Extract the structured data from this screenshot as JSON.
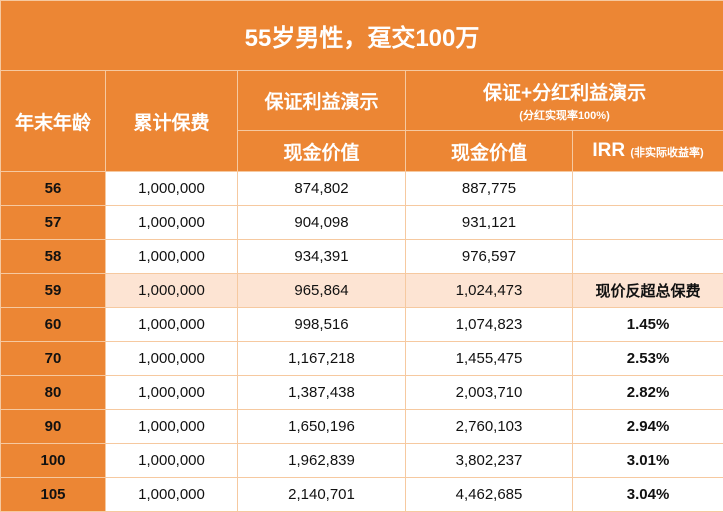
{
  "title": "55岁男性，趸交100万",
  "headers": {
    "age": "年末年龄",
    "premium": "累计保费",
    "guaranteed": "保证利益演示",
    "dividend": "保证+分红利益演示",
    "dividend_note": "(分红实现率100%)",
    "cash_value_g": "现金价值",
    "cash_value_d": "现金价值",
    "irr": "IRR",
    "irr_note": "(非实际收益率)"
  },
  "rows": [
    {
      "age": "56",
      "premium": "1,000,000",
      "guaranteed": "874,802",
      "dividend": "887,775",
      "irr": ""
    },
    {
      "age": "57",
      "premium": "1,000,000",
      "guaranteed": "904,098",
      "dividend": "931,121",
      "irr": ""
    },
    {
      "age": "58",
      "premium": "1,000,000",
      "guaranteed": "934,391",
      "dividend": "976,597",
      "irr": ""
    },
    {
      "age": "59",
      "premium": "1,000,000",
      "guaranteed": "965,864",
      "dividend": "1,024,473",
      "irr": "现价反超总保费"
    },
    {
      "age": "60",
      "premium": "1,000,000",
      "guaranteed": "998,516",
      "dividend": "1,074,823",
      "irr": "1.45%"
    },
    {
      "age": "70",
      "premium": "1,000,000",
      "guaranteed": "1,167,218",
      "dividend": "1,455,475",
      "irr": "2.53%"
    },
    {
      "age": "80",
      "premium": "1,000,000",
      "guaranteed": "1,387,438",
      "dividend": "2,003,710",
      "irr": "2.82%"
    },
    {
      "age": "90",
      "premium": "1,000,000",
      "guaranteed": "1,650,196",
      "dividend": "2,760,103",
      "irr": "2.94%"
    },
    {
      "age": "100",
      "premium": "1,000,000",
      "guaranteed": "1,962,839",
      "dividend": "3,802,237",
      "irr": "3.01%"
    },
    {
      "age": "105",
      "premium": "1,000,000",
      "guaranteed": "2,140,701",
      "dividend": "4,462,685",
      "irr": "3.04%"
    }
  ],
  "colors": {
    "header": "#EC8634",
    "highlight": "#FDE4D3",
    "irr": "#C00000"
  }
}
